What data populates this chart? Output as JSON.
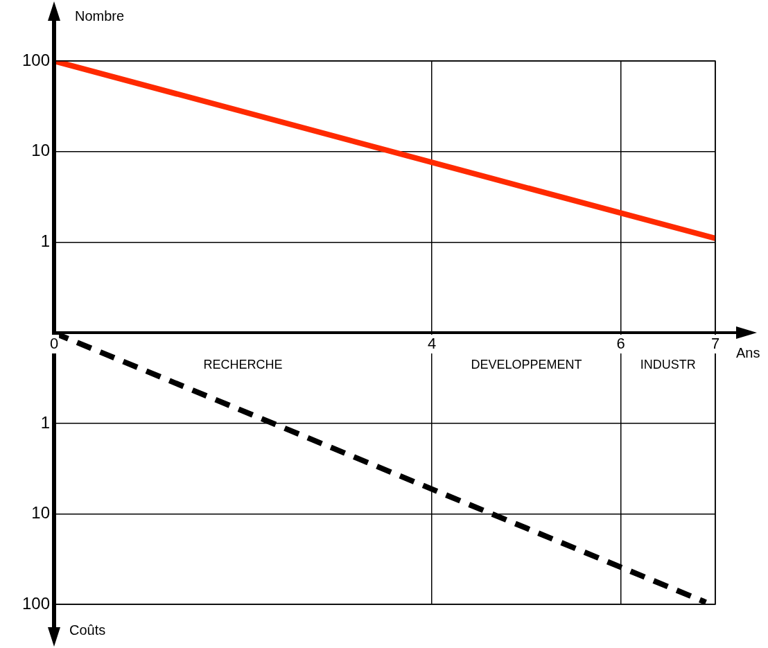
{
  "chart_data": [
    {
      "type": "line",
      "xlabel": "Ans",
      "ylabel": "Nombre",
      "x": [
        0,
        7
      ],
      "xlim": [
        0,
        7
      ],
      "xticks": [
        0,
        4,
        6,
        7
      ],
      "ylim": [
        0.1,
        100
      ],
      "yticks": [
        1,
        10,
        100
      ],
      "log": "y",
      "grid": true,
      "legend": false,
      "marker": "none",
      "series": [
        {
          "color": "#ff2a00",
          "values": [
            100,
            1.1
          ],
          "line_style": "solid"
        }
      ]
    },
    {
      "type": "line",
      "x": [
        0,
        6.9
      ],
      "xlim": [
        0,
        7
      ],
      "xticks": [
        0,
        4,
        6,
        7
      ],
      "ylim": [
        100,
        0.1
      ],
      "yticks": [
        1,
        10,
        100
      ],
      "log": "y",
      "grid": true,
      "legend": false,
      "marker": "none",
      "tick_labels": "y",
      "series": [
        {
          "color": "#000000",
          "values": [
            0.1,
            95
          ],
          "line_style": "dashed"
        }
      ],
      "annotations": [
        "RECHERCHE",
        "DEVELOPPEMENT",
        "INDUSTR",
        "Coûts"
      ]
    }
  ]
}
